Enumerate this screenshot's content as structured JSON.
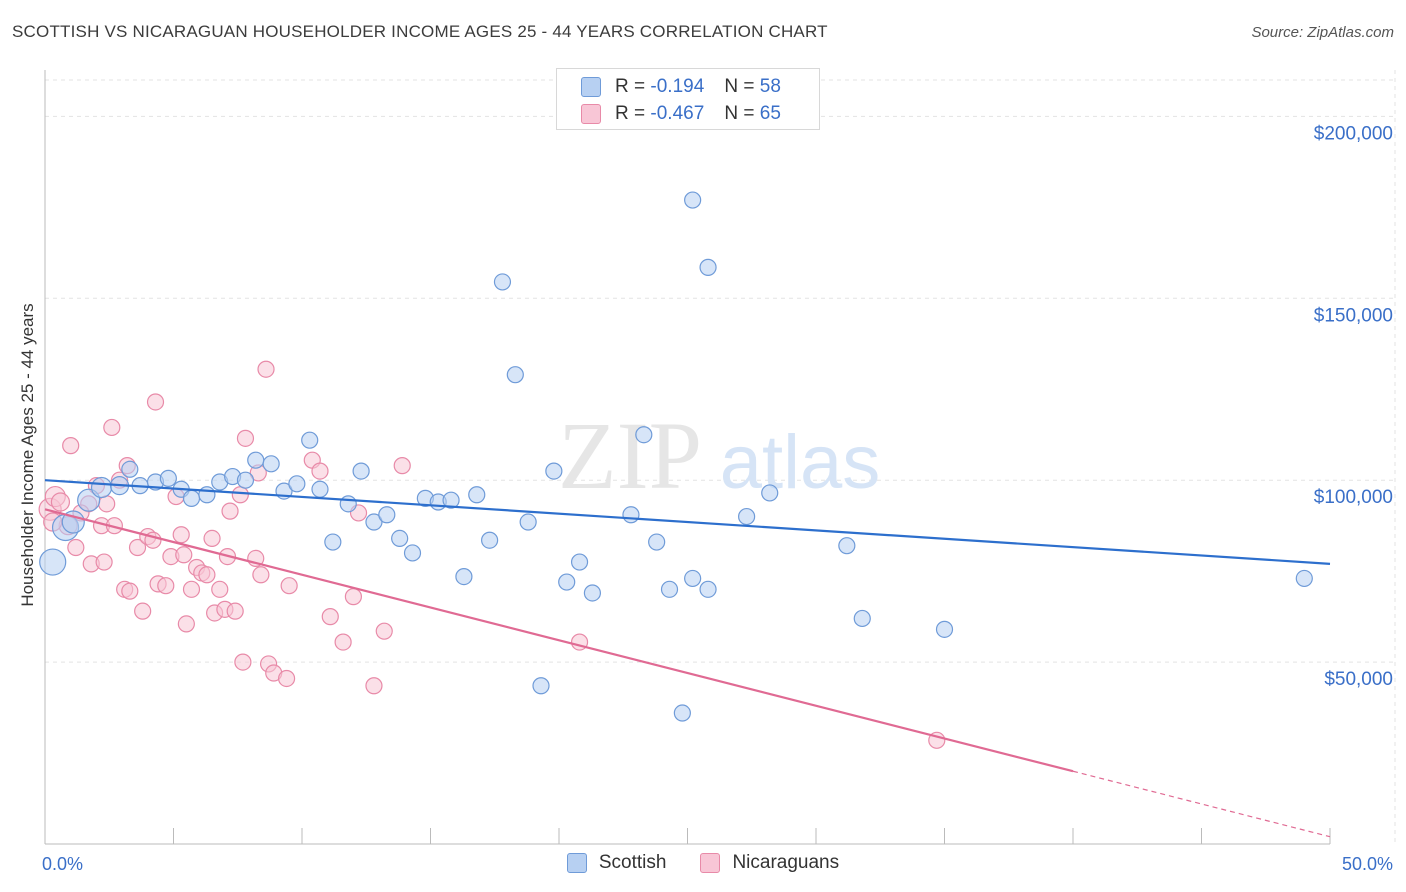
{
  "title": "SCOTTISH VS NICARAGUAN HOUSEHOLDER INCOME AGES 25 - 44 YEARS CORRELATION CHART",
  "source": "Source: ZipAtlas.com",
  "watermark": {
    "zip": "ZIP",
    "atlas": "atlas"
  },
  "legend_top": [
    {
      "r_label": "R =",
      "r_value": "-0.194",
      "n_label": "N =",
      "n_value": "58"
    },
    {
      "r_label": "R =",
      "r_value": "-0.467",
      "n_label": "N =",
      "n_value": "65"
    }
  ],
  "legend_bottom": [
    "Scottish",
    "Nicaraguans"
  ],
  "colors": {
    "blue_fill": "#b7d0f2",
    "blue_stroke": "#6f9bd8",
    "blue_line": "#2d6fcd",
    "pink_fill": "#f8c6d6",
    "pink_stroke": "#e88aa8",
    "pink_line": "#e06a93",
    "tick_label": "#3a6fc8",
    "grid": "#e3e3e3"
  },
  "chart_data": {
    "type": "scatter",
    "title": "SCOTTISH VS NICARAGUAN HOUSEHOLDER INCOME AGES 25 - 44 YEARS CORRELATION CHART",
    "xlabel": "",
    "ylabel": "Householder Income Ages 25 - 44 years",
    "xlim": [
      0,
      50
    ],
    "ylim": [
      0,
      210000
    ],
    "x_tick_labels": [
      "0.0%",
      "50.0%"
    ],
    "y_ticks": [
      50000,
      100000,
      150000,
      200000
    ],
    "y_tick_labels": [
      "$50,000",
      "$100,000",
      "$150,000",
      "$200,000"
    ],
    "grid": true,
    "legend_position": "top-center",
    "series": [
      {
        "name": "Scottish",
        "r": -0.194,
        "n": 58,
        "trend": {
          "x": [
            0,
            50
          ],
          "y": [
            100000,
            77000
          ]
        },
        "points": [
          {
            "x": 0.3,
            "y": 77500,
            "s": 13
          },
          {
            "x": 0.8,
            "y": 87000,
            "s": 13
          },
          {
            "x": 1.1,
            "y": 88500,
            "s": 11
          },
          {
            "x": 1.7,
            "y": 94500,
            "s": 11
          },
          {
            "x": 2.2,
            "y": 98000,
            "s": 10
          },
          {
            "x": 2.9,
            "y": 98500,
            "s": 9
          },
          {
            "x": 3.3,
            "y": 103000,
            "s": 8
          },
          {
            "x": 3.7,
            "y": 98500,
            "s": 8
          },
          {
            "x": 4.3,
            "y": 99500,
            "s": 8
          },
          {
            "x": 4.8,
            "y": 100500,
            "s": 8
          },
          {
            "x": 5.3,
            "y": 97500,
            "s": 8
          },
          {
            "x": 5.7,
            "y": 95000,
            "s": 8
          },
          {
            "x": 6.3,
            "y": 96000,
            "s": 8
          },
          {
            "x": 6.8,
            "y": 99500,
            "s": 8
          },
          {
            "x": 7.3,
            "y": 101000,
            "s": 8
          },
          {
            "x": 7.8,
            "y": 100000,
            "s": 8
          },
          {
            "x": 8.2,
            "y": 105500,
            "s": 8
          },
          {
            "x": 8.8,
            "y": 104500,
            "s": 8
          },
          {
            "x": 9.3,
            "y": 97000,
            "s": 8
          },
          {
            "x": 9.8,
            "y": 99000,
            "s": 8
          },
          {
            "x": 10.3,
            "y": 111000,
            "s": 8
          },
          {
            "x": 10.7,
            "y": 97500,
            "s": 8
          },
          {
            "x": 11.2,
            "y": 83000,
            "s": 8
          },
          {
            "x": 11.8,
            "y": 93500,
            "s": 8
          },
          {
            "x": 12.3,
            "y": 102500,
            "s": 8
          },
          {
            "x": 12.8,
            "y": 88500,
            "s": 8
          },
          {
            "x": 13.3,
            "y": 90500,
            "s": 8
          },
          {
            "x": 13.8,
            "y": 84000,
            "s": 8
          },
          {
            "x": 14.3,
            "y": 80000,
            "s": 8
          },
          {
            "x": 14.8,
            "y": 95000,
            "s": 8
          },
          {
            "x": 15.3,
            "y": 94000,
            "s": 8
          },
          {
            "x": 15.8,
            "y": 94500,
            "s": 8
          },
          {
            "x": 16.3,
            "y": 73500,
            "s": 8
          },
          {
            "x": 16.8,
            "y": 96000,
            "s": 8
          },
          {
            "x": 17.3,
            "y": 83500,
            "s": 8
          },
          {
            "x": 17.8,
            "y": 154500,
            "s": 8
          },
          {
            "x": 18.3,
            "y": 129000,
            "s": 8
          },
          {
            "x": 18.8,
            "y": 88500,
            "s": 8
          },
          {
            "x": 19.3,
            "y": 43500,
            "s": 8
          },
          {
            "x": 19.8,
            "y": 102500,
            "s": 8
          },
          {
            "x": 20.3,
            "y": 72000,
            "s": 8
          },
          {
            "x": 20.8,
            "y": 77500,
            "s": 8
          },
          {
            "x": 21.3,
            "y": 69000,
            "s": 8
          },
          {
            "x": 22.8,
            "y": 90500,
            "s": 8
          },
          {
            "x": 23.3,
            "y": 112500,
            "s": 8
          },
          {
            "x": 23.8,
            "y": 83000,
            "s": 8
          },
          {
            "x": 24.3,
            "y": 70000,
            "s": 8
          },
          {
            "x": 24.8,
            "y": 36000,
            "s": 8
          },
          {
            "x": 25.2,
            "y": 73000,
            "s": 8
          },
          {
            "x": 25.8,
            "y": 70000,
            "s": 8
          },
          {
            "x": 27.3,
            "y": 90000,
            "s": 8
          },
          {
            "x": 28.2,
            "y": 96500,
            "s": 8
          },
          {
            "x": 31.2,
            "y": 82000,
            "s": 8
          },
          {
            "x": 31.8,
            "y": 62000,
            "s": 8
          },
          {
            "x": 35,
            "y": 59000,
            "s": 8
          },
          {
            "x": 49,
            "y": 73000,
            "s": 8
          },
          {
            "x": 25.8,
            "y": 158500,
            "s": 8
          },
          {
            "x": 25.2,
            "y": 177000,
            "s": 8
          }
        ]
      },
      {
        "name": "Nicaraguans",
        "r": -0.467,
        "n": 65,
        "trend": {
          "x": [
            0,
            40
          ],
          "y": [
            92000,
            20000
          ]
        },
        "trend_dashed": {
          "x": [
            40,
            50
          ],
          "y": [
            20000,
            2000
          ]
        },
        "points": [
          {
            "x": 0.2,
            "y": 92000,
            "s": 11
          },
          {
            "x": 0.4,
            "y": 95500,
            "s": 10
          },
          {
            "x": 0.6,
            "y": 94000,
            "s": 9
          },
          {
            "x": 0.9,
            "y": 87500,
            "s": 9
          },
          {
            "x": 1.0,
            "y": 109500,
            "s": 8
          },
          {
            "x": 1.2,
            "y": 81500,
            "s": 8
          },
          {
            "x": 1.7,
            "y": 93500,
            "s": 8
          },
          {
            "x": 2.0,
            "y": 98500,
            "s": 8
          },
          {
            "x": 2.2,
            "y": 87500,
            "s": 8
          },
          {
            "x": 1.8,
            "y": 77000,
            "s": 8
          },
          {
            "x": 2.3,
            "y": 77500,
            "s": 8
          },
          {
            "x": 2.6,
            "y": 114500,
            "s": 8
          },
          {
            "x": 2.7,
            "y": 87500,
            "s": 8
          },
          {
            "x": 2.9,
            "y": 100000,
            "s": 8
          },
          {
            "x": 3.1,
            "y": 70000,
            "s": 8
          },
          {
            "x": 3.2,
            "y": 104000,
            "s": 8
          },
          {
            "x": 3.3,
            "y": 69500,
            "s": 8
          },
          {
            "x": 3.6,
            "y": 81500,
            "s": 8
          },
          {
            "x": 3.8,
            "y": 64000,
            "s": 8
          },
          {
            "x": 4.0,
            "y": 84500,
            "s": 8
          },
          {
            "x": 4.2,
            "y": 83500,
            "s": 8
          },
          {
            "x": 4.3,
            "y": 121500,
            "s": 8
          },
          {
            "x": 4.4,
            "y": 71500,
            "s": 8
          },
          {
            "x": 4.7,
            "y": 71000,
            "s": 8
          },
          {
            "x": 4.9,
            "y": 79000,
            "s": 8
          },
          {
            "x": 5.1,
            "y": 95500,
            "s": 8
          },
          {
            "x": 5.3,
            "y": 85000,
            "s": 8
          },
          {
            "x": 5.4,
            "y": 79500,
            "s": 8
          },
          {
            "x": 5.5,
            "y": 60500,
            "s": 8
          },
          {
            "x": 5.7,
            "y": 70000,
            "s": 8
          },
          {
            "x": 5.9,
            "y": 76000,
            "s": 8
          },
          {
            "x": 6.1,
            "y": 74500,
            "s": 8
          },
          {
            "x": 6.3,
            "y": 74000,
            "s": 8
          },
          {
            "x": 6.5,
            "y": 84000,
            "s": 8
          },
          {
            "x": 6.6,
            "y": 63500,
            "s": 8
          },
          {
            "x": 6.8,
            "y": 70000,
            "s": 8
          },
          {
            "x": 7.0,
            "y": 64500,
            "s": 8
          },
          {
            "x": 7.1,
            "y": 79000,
            "s": 8
          },
          {
            "x": 7.2,
            "y": 91500,
            "s": 8
          },
          {
            "x": 7.4,
            "y": 64000,
            "s": 8
          },
          {
            "x": 7.6,
            "y": 96000,
            "s": 8
          },
          {
            "x": 7.7,
            "y": 50000,
            "s": 8
          },
          {
            "x": 7.8,
            "y": 111500,
            "s": 8
          },
          {
            "x": 8.2,
            "y": 78500,
            "s": 8
          },
          {
            "x": 8.3,
            "y": 102000,
            "s": 8
          },
          {
            "x": 8.4,
            "y": 74000,
            "s": 8
          },
          {
            "x": 8.6,
            "y": 130500,
            "s": 8
          },
          {
            "x": 8.7,
            "y": 49500,
            "s": 8
          },
          {
            "x": 8.9,
            "y": 47000,
            "s": 8
          },
          {
            "x": 9.4,
            "y": 45500,
            "s": 8
          },
          {
            "x": 9.5,
            "y": 71000,
            "s": 8
          },
          {
            "x": 10.4,
            "y": 105500,
            "s": 8
          },
          {
            "x": 10.7,
            "y": 102500,
            "s": 8
          },
          {
            "x": 11.1,
            "y": 62500,
            "s": 8
          },
          {
            "x": 11.6,
            "y": 55500,
            "s": 8
          },
          {
            "x": 12.0,
            "y": 68000,
            "s": 8
          },
          {
            "x": 12.2,
            "y": 91000,
            "s": 8
          },
          {
            "x": 12.8,
            "y": 43500,
            "s": 8
          },
          {
            "x": 13.2,
            "y": 58500,
            "s": 8
          },
          {
            "x": 13.9,
            "y": 104000,
            "s": 8
          },
          {
            "x": 20.8,
            "y": 55500,
            "s": 8
          },
          {
            "x": 34.7,
            "y": 28500,
            "s": 8
          },
          {
            "x": 0.3,
            "y": 88500,
            "s": 9
          },
          {
            "x": 1.4,
            "y": 91000,
            "s": 8
          },
          {
            "x": 2.4,
            "y": 93500,
            "s": 8
          }
        ]
      }
    ]
  }
}
